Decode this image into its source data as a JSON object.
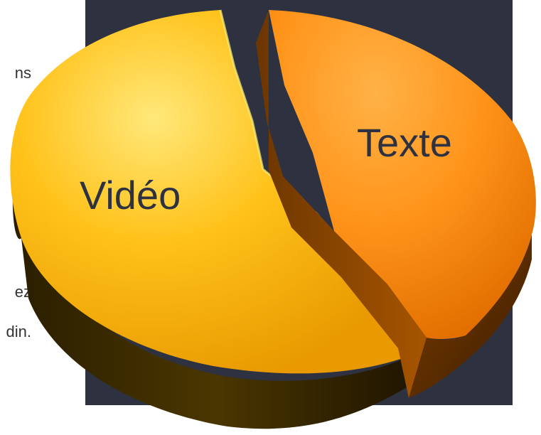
{
  "background_text": {
    "fragments": [
      "ns",
      "ez",
      "din."
    ]
  },
  "chart_data": {
    "type": "pie",
    "style": "3d-exploded",
    "slices": [
      {
        "label": "Vidéo",
        "value": 57,
        "color": "#f7c21a"
      },
      {
        "label": "Texte",
        "value": 43,
        "color": "#f7931a"
      }
    ],
    "legend": "none"
  }
}
